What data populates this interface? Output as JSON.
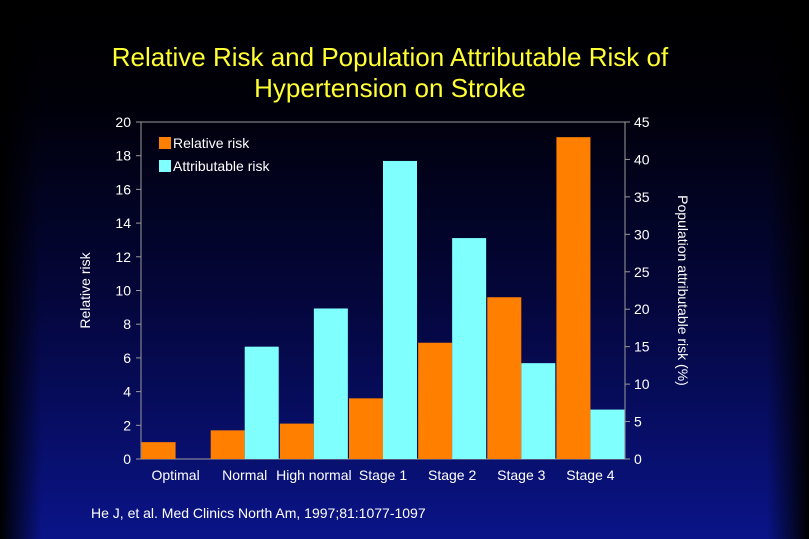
{
  "title_line1": "Relative Risk and Population Attributable Risk of",
  "title_line2": "Hypertension on Stroke",
  "citation": "He J, et al. Med Clinics North Am, 1997;81:1077-1097",
  "colors": {
    "background": "#000033",
    "title": "#ffff33",
    "relative_risk": "#ff8000",
    "attributable_risk": "#80ffff",
    "text": "#ffffff"
  },
  "chart_data": {
    "type": "bar",
    "categories": [
      "Optimal",
      "Normal",
      "High normal",
      "Stage 1",
      "Stage 2",
      "Stage 3",
      "Stage 4"
    ],
    "series": [
      {
        "name": "Relative risk",
        "axis": "left",
        "color": "#ff8000",
        "values": [
          1.0,
          1.7,
          2.1,
          3.6,
          6.9,
          9.6,
          19.1
        ]
      },
      {
        "name": "Attributable risk",
        "axis": "right",
        "color": "#80ffff",
        "values": [
          0,
          15.0,
          20.1,
          39.8,
          29.5,
          12.8,
          6.6
        ]
      }
    ],
    "ylabel": "Relative risk",
    "ylabel_right": "Population attributable risk (%)",
    "ylim": [
      0,
      20
    ],
    "ylim_right": [
      0,
      45
    ],
    "yticks": [
      0,
      2,
      4,
      6,
      8,
      10,
      12,
      14,
      16,
      18,
      20
    ],
    "yticks_right": [
      0,
      5,
      10,
      15,
      20,
      25,
      30,
      35,
      40,
      45
    ],
    "legend_position": "top-left",
    "grid": false
  }
}
